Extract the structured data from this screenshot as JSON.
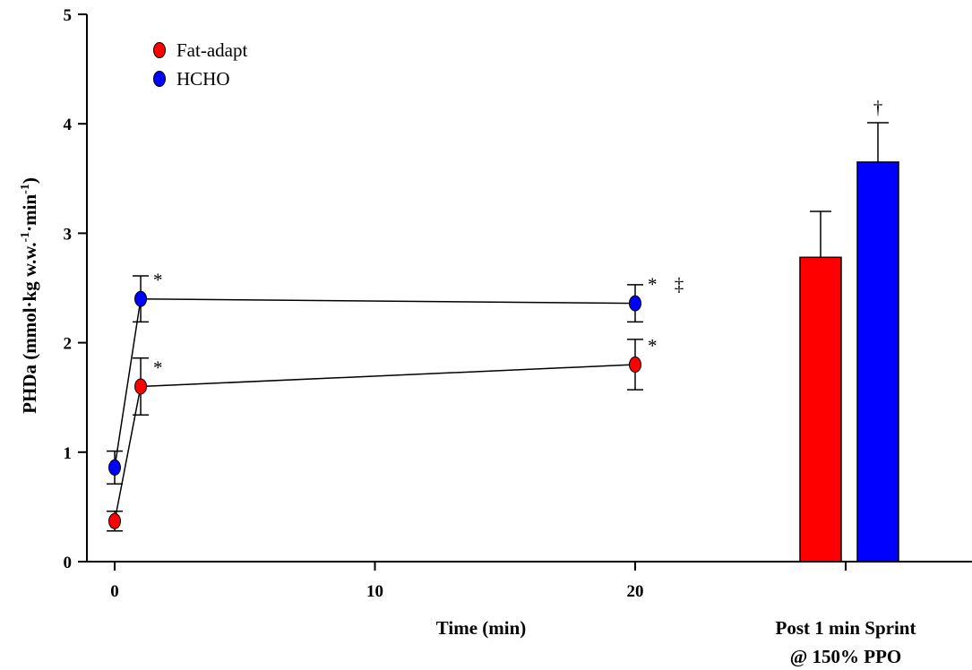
{
  "chart_data": {
    "type": "line+bar",
    "ylabel": "PHDa (mmol·kg w.w.-1·min-1)",
    "ylim": [
      0,
      5
    ],
    "yticks": [
      "0",
      "1",
      "2",
      "3",
      "4",
      "5"
    ],
    "line_panel": {
      "xlabel": "Time (min)",
      "xlim": [
        0,
        27
      ],
      "xticks": [
        "0",
        "10",
        "20"
      ],
      "series": [
        {
          "name": "Fat-adapt",
          "color": "#ff0000",
          "points": [
            {
              "x": 0,
              "y": 0.37,
              "err": 0.09,
              "mark": ""
            },
            {
              "x": 1,
              "y": 1.6,
              "err": 0.26,
              "mark": "*"
            },
            {
              "x": 20,
              "y": 1.8,
              "err": 0.23,
              "mark": "*"
            }
          ]
        },
        {
          "name": "HCHO",
          "color": "#0000ff",
          "points": [
            {
              "x": 0,
              "y": 0.86,
              "err": 0.15,
              "mark": ""
            },
            {
              "x": 1,
              "y": 2.4,
              "err": 0.21,
              "mark": "*"
            },
            {
              "x": 20,
              "y": 2.36,
              "err": 0.17,
              "mark": "* ‡"
            }
          ]
        }
      ]
    },
    "bar_panel": {
      "category_label_line1": "Post 1 min Sprint",
      "category_label_line2": "@ 150% PPO",
      "bars": [
        {
          "name": "Fat-adapt",
          "color": "#ff0000",
          "value": 2.78,
          "err": 0.42,
          "mark": ""
        },
        {
          "name": "HCHO",
          "color": "#0000ff",
          "value": 3.65,
          "err": 0.36,
          "mark": "†"
        }
      ]
    },
    "legend": {
      "position": "top-left",
      "entries": [
        {
          "label": "Fat-adapt",
          "color": "#ff0000"
        },
        {
          "label": "HCHO",
          "color": "#0000ff"
        }
      ]
    }
  }
}
